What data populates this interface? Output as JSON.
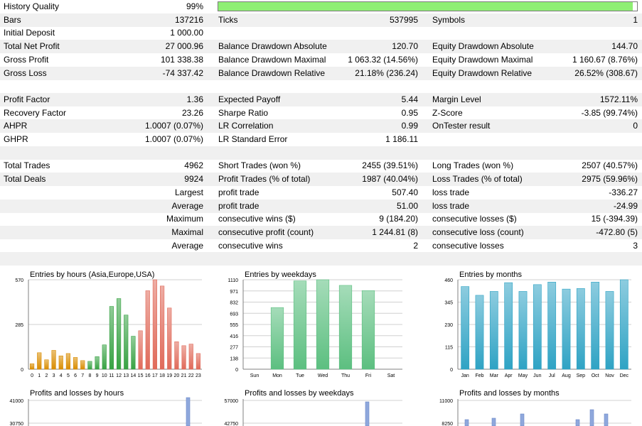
{
  "summary": {
    "history_quality": {
      "label": "History Quality",
      "value": "99%",
      "fraction": 0.99
    },
    "rows": [
      {
        "c1": "Bars",
        "c2": "137216",
        "c3": "Ticks",
        "c4": "537995",
        "c5": "Symbols",
        "c6": "1",
        "shade": true
      },
      {
        "c1": "Initial Deposit",
        "c2": "1 000.00",
        "c3": "",
        "c4": "",
        "c5": "",
        "c6": "",
        "shade": false
      },
      {
        "c1": "Total Net Profit",
        "c2": "27 000.96",
        "c3": "Balance Drawdown Absolute",
        "c4": "120.70",
        "c5": "Equity Drawdown Absolute",
        "c6": "144.70",
        "shade": true
      },
      {
        "c1": "Gross Profit",
        "c2": "101 338.38",
        "c3": "Balance Drawdown Maximal",
        "c4": "1 063.32 (14.56%)",
        "c5": "Equity Drawdown Maximal",
        "c6": "1 160.67 (8.76%)",
        "shade": false
      },
      {
        "c1": "Gross Loss",
        "c2": "-74 337.42",
        "c3": "Balance Drawdown Relative",
        "c4": "21.18% (236.24)",
        "c5": "Equity Drawdown Relative",
        "c6": "26.52% (308.67)",
        "shade": true
      },
      {
        "c1": "",
        "c2": "",
        "c3": "",
        "c4": "",
        "c5": "",
        "c6": "",
        "shade": false
      },
      {
        "c1": "Profit Factor",
        "c2": "1.36",
        "c3": "Expected Payoff",
        "c4": "5.44",
        "c5": "Margin Level",
        "c6": "1572.11%",
        "shade": true
      },
      {
        "c1": "Recovery Factor",
        "c2": "23.26",
        "c3": "Sharpe Ratio",
        "c4": "0.95",
        "c5": "Z-Score",
        "c6": "-3.85 (99.74%)",
        "shade": false
      },
      {
        "c1": "AHPR",
        "c2": "1.0007 (0.07%)",
        "c3": "LR Correlation",
        "c4": "0.99",
        "c5": "OnTester result",
        "c6": "0",
        "shade": true
      },
      {
        "c1": "GHPR",
        "c2": "1.0007 (0.07%)",
        "c3": "LR Standard Error",
        "c4": "1 186.11",
        "c5": "",
        "c6": "",
        "shade": false
      },
      {
        "c1": "",
        "c2": "",
        "c3": "",
        "c4": "",
        "c5": "",
        "c6": "",
        "shade": true
      },
      {
        "c1": "Total Trades",
        "c2": "4962",
        "c3": "Short Trades (won %)",
        "c4": "2455 (39.51%)",
        "c5": "Long Trades (won %)",
        "c6": "2507 (40.57%)",
        "shade": false
      },
      {
        "c1": "Total Deals",
        "c2": "9924",
        "c3": "Profit Trades (% of total)",
        "c4": "1987 (40.04%)",
        "c5": "Loss Trades (% of total)",
        "c6": "2975 (59.96%)",
        "shade": true
      },
      {
        "c1": "",
        "c2": "Largest",
        "c3": "profit trade",
        "c4": "507.40",
        "c5": "loss trade",
        "c6": "-336.27",
        "shade": false
      },
      {
        "c1": "",
        "c2": "Average",
        "c3": "profit trade",
        "c4": "51.00",
        "c5": "loss trade",
        "c6": "-24.99",
        "shade": true
      },
      {
        "c1": "",
        "c2": "Maximum",
        "c3": "consecutive wins ($)",
        "c4": "9 (184.20)",
        "c5": "consecutive losses ($)",
        "c6": "15 (-394.39)",
        "shade": false
      },
      {
        "c1": "",
        "c2": "Maximal",
        "c3": "consecutive profit (count)",
        "c4": "1 244.81 (8)",
        "c5": "consecutive loss (count)",
        "c6": "-472.80 (5)",
        "shade": true
      },
      {
        "c1": "",
        "c2": "Average",
        "c3": "consecutive wins",
        "c4": "2",
        "c5": "consecutive losses",
        "c6": "3",
        "shade": false
      },
      {
        "c1": "",
        "c2": "",
        "c3": "",
        "c4": "",
        "c5": "",
        "c6": "",
        "shade": true
      }
    ]
  },
  "chart_data": [
    {
      "type": "bar",
      "title": "Entries by hours (Asia,Europe,USA)",
      "categories": [
        "0",
        "1",
        "2",
        "3",
        "4",
        "5",
        "6",
        "7",
        "8",
        "9",
        "10",
        "11",
        "12",
        "13",
        "14",
        "15",
        "16",
        "17",
        "18",
        "19",
        "20",
        "21",
        "22",
        "23"
      ],
      "values": [
        35,
        105,
        60,
        120,
        85,
        100,
        75,
        55,
        50,
        80,
        155,
        400,
        450,
        345,
        210,
        245,
        500,
        570,
        530,
        390,
        175,
        150,
        160,
        100
      ],
      "ylim": [
        0,
        570
      ],
      "yticks": [
        "0",
        "285",
        "570"
      ],
      "colors": [
        "#d98c00",
        "#d98c00",
        "#d98c00",
        "#d98c00",
        "#d98c00",
        "#d98c00",
        "#d98c00",
        "#d98c00",
        "#37a243",
        "#37a243",
        "#37a243",
        "#37a243",
        "#37a243",
        "#37a243",
        "#37a243",
        "#e06a5a",
        "#e06a5a",
        "#e06a5a",
        "#e06a5a",
        "#e06a5a",
        "#e06a5a",
        "#e06a5a",
        "#e06a5a",
        "#e06a5a"
      ]
    },
    {
      "type": "bar",
      "title": "Entries by weekdays",
      "categories": [
        "Sun",
        "Mon",
        "Tue",
        "Wed",
        "Thu",
        "Fri",
        "Sat"
      ],
      "values": [
        0,
        765,
        1095,
        1110,
        1040,
        975,
        0
      ],
      "ylim": [
        0,
        1110
      ],
      "yticks": [
        "0",
        "138",
        "277",
        "416",
        "555",
        "693",
        "832",
        "971",
        "1110"
      ],
      "colors": [
        "#5cbf80"
      ]
    },
    {
      "type": "bar",
      "title": "Entries by months",
      "categories": [
        "Jan",
        "Feb",
        "Mar",
        "Apr",
        "May",
        "Jun",
        "Jul",
        "Aug",
        "Sep",
        "Oct",
        "Nov",
        "Dec"
      ],
      "values": [
        425,
        380,
        400,
        445,
        400,
        435,
        448,
        412,
        415,
        448,
        400,
        460
      ],
      "ylim": [
        0,
        460
      ],
      "yticks": [
        "0",
        "115",
        "230",
        "345",
        "460"
      ],
      "colors": [
        "#2fa3c4"
      ]
    },
    {
      "type": "bar",
      "title": "Profits and losses by hours",
      "categories": [],
      "values": [],
      "yticks": [
        "41000",
        "30750"
      ]
    },
    {
      "type": "bar",
      "title": "Profits and losses by weekdays",
      "categories": [],
      "values": [],
      "yticks": [
        "57000",
        "42750"
      ]
    },
    {
      "type": "bar",
      "title": "Profits and losses by months",
      "categories": [],
      "values": [],
      "yticks": [
        "11000",
        "8250"
      ]
    }
  ]
}
